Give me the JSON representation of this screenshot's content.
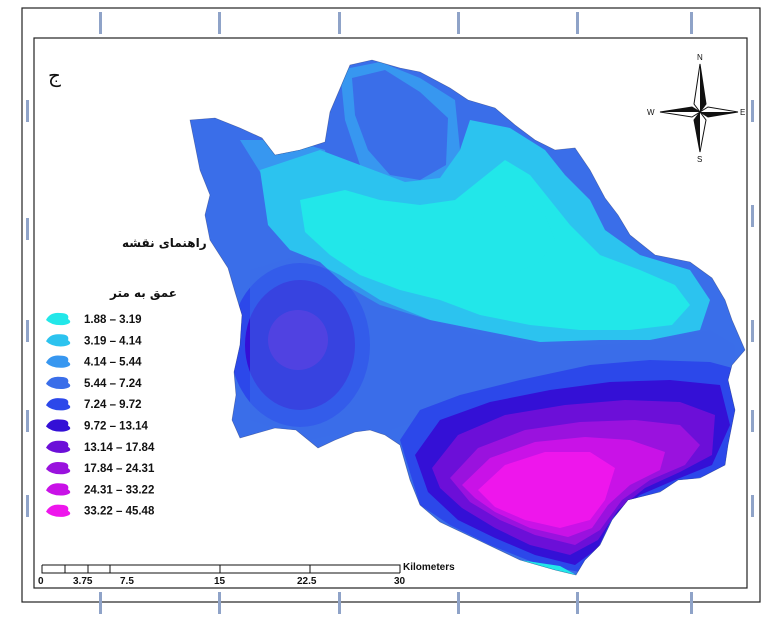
{
  "panel_label": "ج",
  "legend": {
    "title": "راهنمای نقشه",
    "subtitle": "عمق به متر",
    "classes": [
      {
        "label": "1.88 – 3.19",
        "color": "#22e7e9"
      },
      {
        "label": "3.19 – 4.14",
        "color": "#2cc3ef"
      },
      {
        "label": "4.14 – 5.44",
        "color": "#3797f0"
      },
      {
        "label": "5.44 – 7.24",
        "color": "#3a6ee9"
      },
      {
        "label": "7.24 – 9.72",
        "color": "#2c48ea"
      },
      {
        "label": "9.72 – 13.14",
        "color": "#3410d6"
      },
      {
        "label": "13.14 – 17.84",
        "color": "#6c0fd8"
      },
      {
        "label": "17.84 – 24.31",
        "color": "#9a12de"
      },
      {
        "label": "24.31 – 33.22",
        "color": "#c912e7"
      },
      {
        "label": "33.22 – 45.48",
        "color": "#ee16ec"
      }
    ]
  },
  "scale_bar": {
    "unit": "Kilometers",
    "ticks": [
      "0",
      "3.75",
      "7.5",
      "15",
      "22.5",
      "30"
    ]
  },
  "north_arrow": {
    "n": "N",
    "s": "S",
    "e": "E",
    "w": "W"
  },
  "icons": [
    "north-arrow-icon",
    "scale-bar-icon"
  ]
}
